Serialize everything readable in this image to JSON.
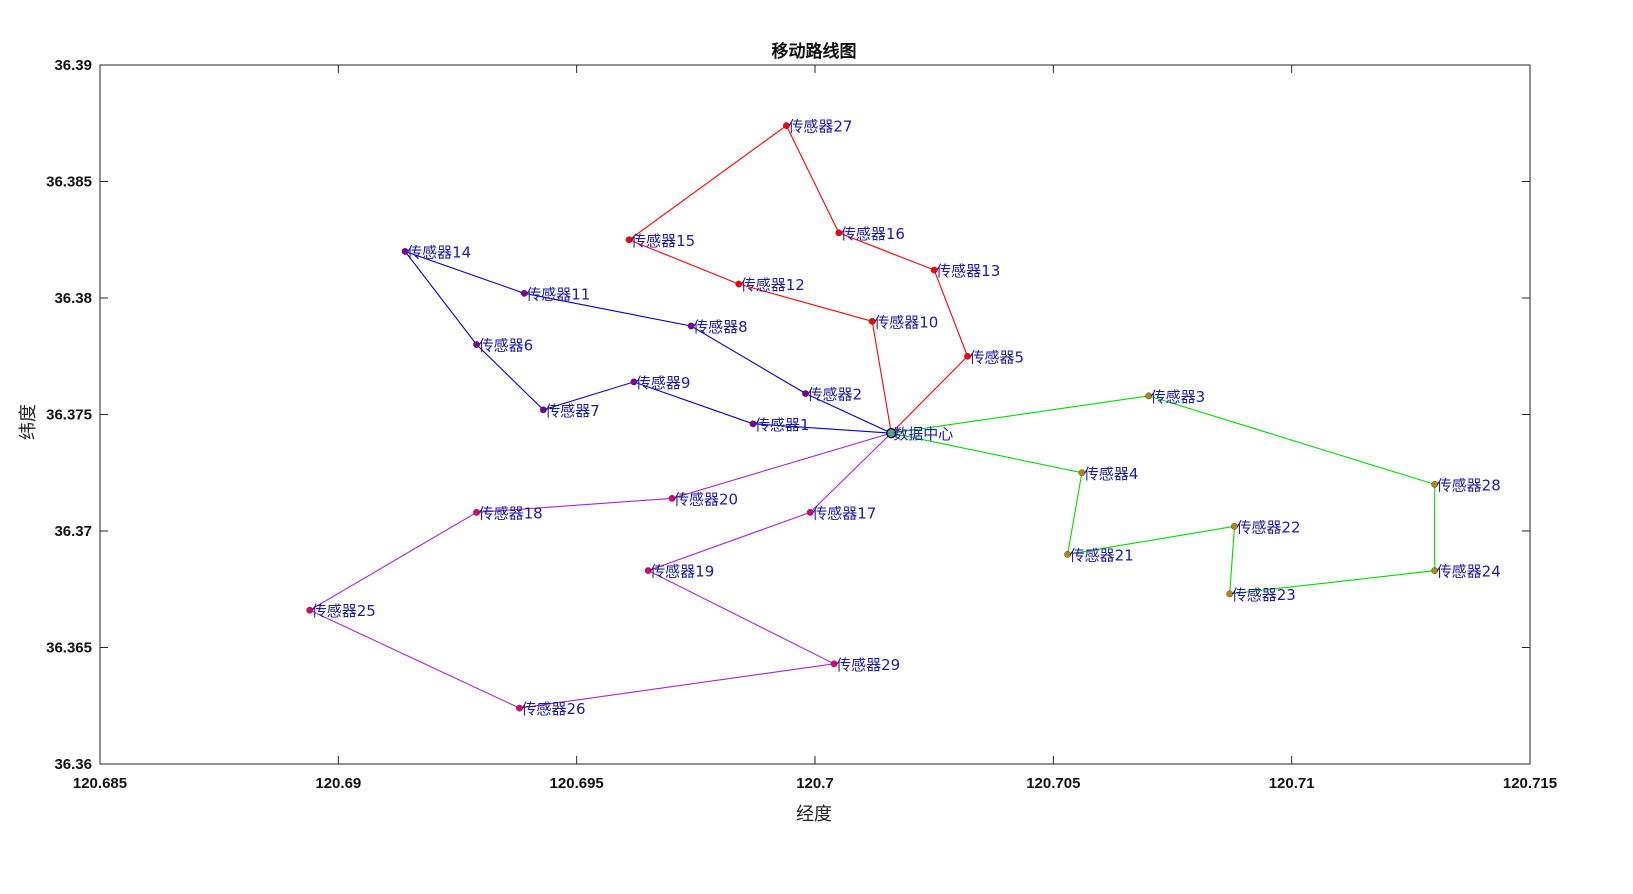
{
  "chart_data": {
    "type": "line",
    "title": "移动路线图",
    "xlabel": "经度",
    "ylabel": "纬度",
    "xlim": [
      120.685,
      120.715
    ],
    "ylim": [
      36.36,
      36.39
    ],
    "xticks": [
      120.685,
      120.69,
      120.695,
      120.7,
      120.705,
      120.71,
      120.715
    ],
    "yticks": [
      36.36,
      36.365,
      36.37,
      36.375,
      36.38,
      36.385,
      36.39
    ],
    "grid": false,
    "label_color": "#1a1aa8",
    "center": {
      "name": "数据中心",
      "x": 120.7016,
      "y": 36.3742
    },
    "points": [
      {
        "name": "传感器1",
        "x": 120.6987,
        "y": 36.3746
      },
      {
        "name": "传感器2",
        "x": 120.6998,
        "y": 36.3759
      },
      {
        "name": "传感器3",
        "x": 120.707,
        "y": 36.3758
      },
      {
        "name": "传感器4",
        "x": 120.7056,
        "y": 36.3725
      },
      {
        "name": "传感器5",
        "x": 120.7032,
        "y": 36.3775
      },
      {
        "name": "传感器6",
        "x": 120.6929,
        "y": 36.378
      },
      {
        "name": "传感器7",
        "x": 120.6943,
        "y": 36.3752
      },
      {
        "name": "传感器8",
        "x": 120.6974,
        "y": 36.3788
      },
      {
        "name": "传感器9",
        "x": 120.6962,
        "y": 36.3764
      },
      {
        "name": "传感器10",
        "x": 120.7012,
        "y": 36.379
      },
      {
        "name": "传感器11",
        "x": 120.6939,
        "y": 36.3802
      },
      {
        "name": "传感器12",
        "x": 120.6984,
        "y": 36.3806
      },
      {
        "name": "传感器13",
        "x": 120.7025,
        "y": 36.3812
      },
      {
        "name": "传感器14",
        "x": 120.6914,
        "y": 36.382
      },
      {
        "name": "传感器15",
        "x": 120.6961,
        "y": 36.3825
      },
      {
        "name": "传感器16",
        "x": 120.7005,
        "y": 36.3828
      },
      {
        "name": "传感器17",
        "x": 120.6999,
        "y": 36.3708
      },
      {
        "name": "传感器18",
        "x": 120.6929,
        "y": 36.3708
      },
      {
        "name": "传感器19",
        "x": 120.6965,
        "y": 36.3683
      },
      {
        "name": "传感器20",
        "x": 120.697,
        "y": 36.3714
      },
      {
        "name": "传感器21",
        "x": 120.7053,
        "y": 36.369
      },
      {
        "name": "传感器22",
        "x": 120.7088,
        "y": 36.3702
      },
      {
        "name": "传感器23",
        "x": 120.7087,
        "y": 36.3673
      },
      {
        "name": "传感器24",
        "x": 120.713,
        "y": 36.3683
      },
      {
        "name": "传感器25",
        "x": 120.6894,
        "y": 36.3666
      },
      {
        "name": "传感器26",
        "x": 120.6938,
        "y": 36.3624
      },
      {
        "name": "传感器27",
        "x": 120.6994,
        "y": 36.3874
      },
      {
        "name": "传感器28",
        "x": 120.713,
        "y": 36.372
      },
      {
        "name": "传感器29",
        "x": 120.7004,
        "y": 36.3643
      }
    ],
    "routes": [
      {
        "color": "#ff0000",
        "marker_color": "#ff0000",
        "stops": [
          "数据中心",
          "传感器10",
          "传感器12",
          "传感器15",
          "传感器27",
          "传感器16",
          "传感器13",
          "传感器5",
          "数据中心"
        ]
      },
      {
        "color": "#0000cc",
        "marker_color": "#7b0099",
        "stops": [
          "数据中心",
          "传感器2",
          "传感器8",
          "传感器11",
          "传感器14",
          "传感器6",
          "传感器7",
          "传感器9",
          "传感器1",
          "数据中心"
        ]
      },
      {
        "color": "#00dd00",
        "marker_color": "#b8860b",
        "stops": [
          "数据中心",
          "传感器3",
          "传感器28",
          "传感器24",
          "传感器23",
          "传感器22",
          "传感器21",
          "传感器4",
          "数据中心"
        ]
      },
      {
        "color": "#aa22dd",
        "marker_color": "#e0006e",
        "stops": [
          "数据中心",
          "传感器20",
          "传感器18",
          "传感器25",
          "传感器26",
          "传感器29",
          "传感器19",
          "传感器17",
          "数据中心"
        ]
      }
    ]
  }
}
